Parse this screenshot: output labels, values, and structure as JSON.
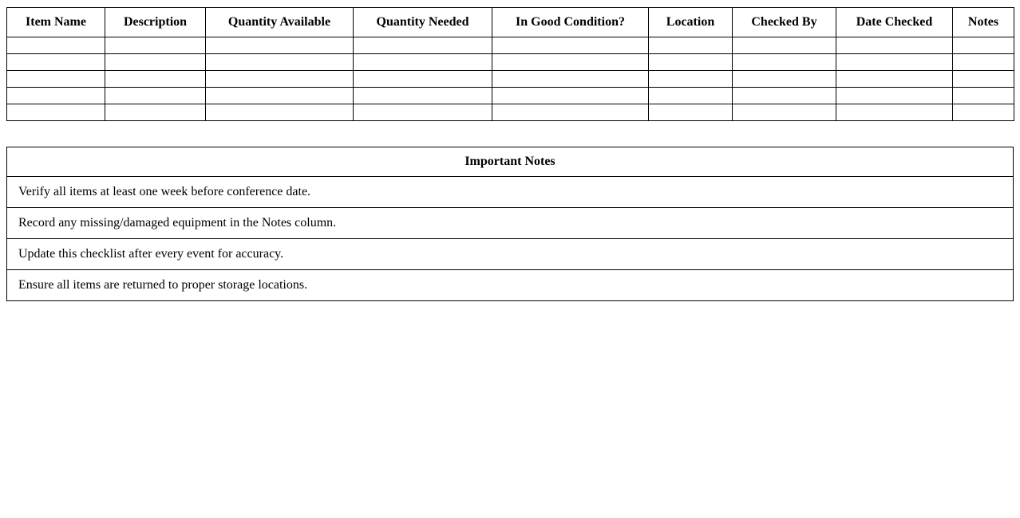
{
  "inventory_table": {
    "columns": [
      "Item Name",
      "Description",
      "Quantity Available",
      "Quantity Needed",
      "In Good Condition?",
      "Location",
      "Checked By",
      "Date Checked",
      "Notes"
    ],
    "empty_row_count": 5
  },
  "notes_table": {
    "title": "Important Notes",
    "rows": [
      "Verify all items at least one week before conference date.",
      "Record any missing/damaged equipment in the Notes column.",
      "Update this checklist after every event for accuracy.",
      "Ensure all items are returned to proper storage locations."
    ]
  },
  "colors": {
    "border": "#000000",
    "text": "#000000",
    "background": "#ffffff"
  }
}
